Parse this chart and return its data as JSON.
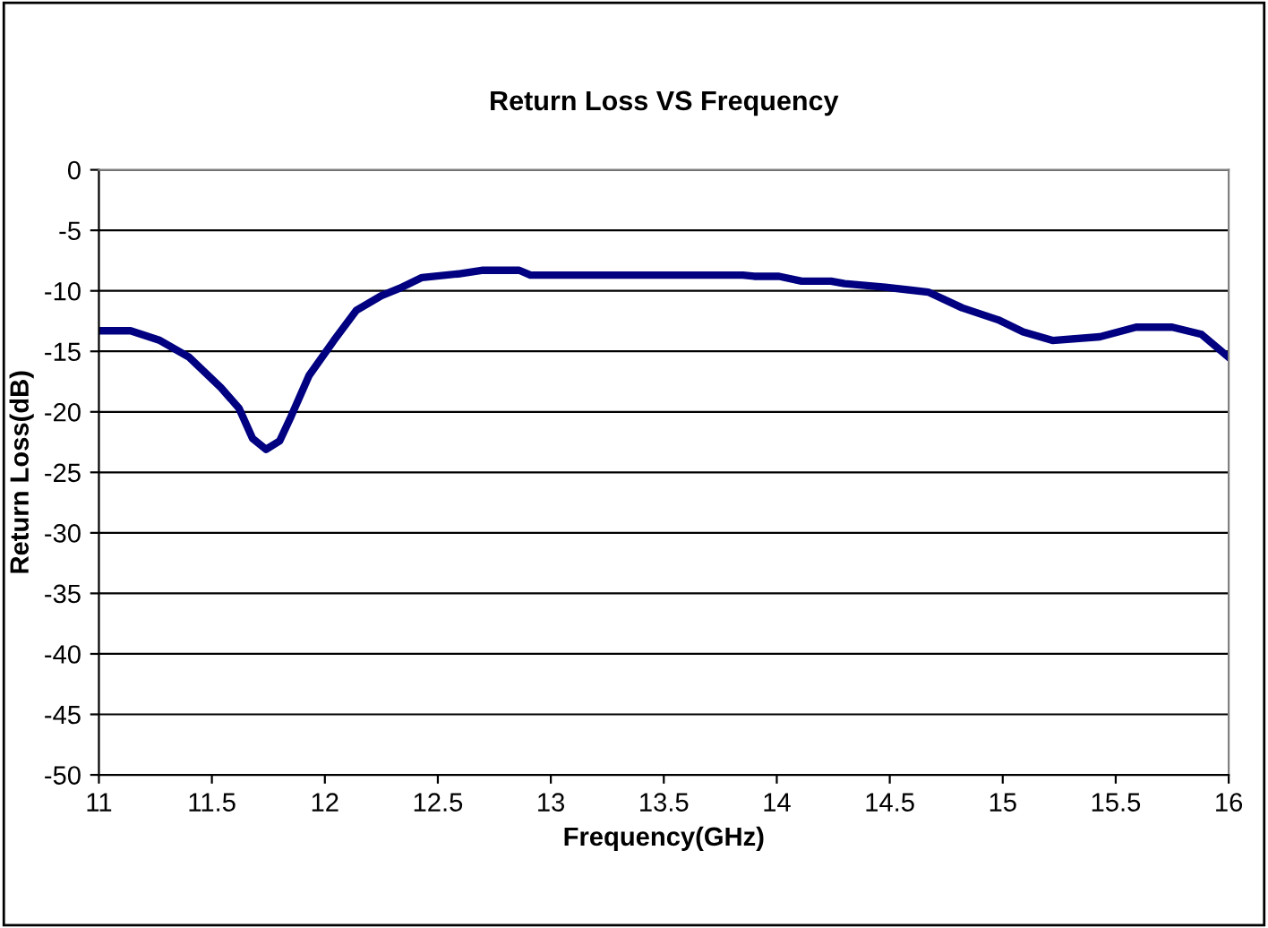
{
  "chart_data": {
    "type": "line",
    "title": "Return Loss VS Frequency",
    "xlabel": "Frequency(GHz)",
    "ylabel": "Return Loss(dB)",
    "series": [
      {
        "color": "#000080",
        "x": [
          11.0,
          11.14,
          11.27,
          11.4,
          11.54,
          11.62,
          11.68,
          11.74,
          11.8,
          11.85,
          11.93,
          12.04,
          12.14,
          12.25,
          12.33,
          12.43,
          12.59,
          12.7,
          12.86,
          12.91,
          13.28,
          13.42,
          13.85,
          13.9,
          14.01,
          14.11,
          14.24,
          14.3,
          14.48,
          14.67,
          14.82,
          14.98,
          15.09,
          15.22,
          15.43,
          15.59,
          15.75,
          15.88,
          16.0
        ],
        "values": [
          -13.3,
          -13.3,
          -14.1,
          -15.5,
          -18.0,
          -19.7,
          -22.2,
          -23.1,
          -22.4,
          -20.4,
          -17.0,
          -14.1,
          -11.6,
          -10.4,
          -9.8,
          -8.9,
          -8.6,
          -8.3,
          -8.3,
          -8.7,
          -8.7,
          -8.7,
          -8.7,
          -8.8,
          -8.8,
          -9.2,
          -9.2,
          -9.4,
          -9.7,
          -10.1,
          -11.4,
          -12.4,
          -13.4,
          -14.1,
          -13.8,
          -13.0,
          -13.0,
          -13.6,
          -15.5
        ]
      }
    ],
    "xlim": [
      11,
      16
    ],
    "xticks": [
      11,
      11.5,
      12,
      12.5,
      13,
      13.5,
      14,
      14.5,
      15,
      15.5,
      16
    ],
    "ylim": [
      -50,
      0
    ],
    "yticks": [
      -50,
      -45,
      -40,
      -35,
      -30,
      -25,
      -20,
      -15,
      -10,
      -5,
      0
    ],
    "grid": "y",
    "marker": "none",
    "line_style": "solid"
  }
}
